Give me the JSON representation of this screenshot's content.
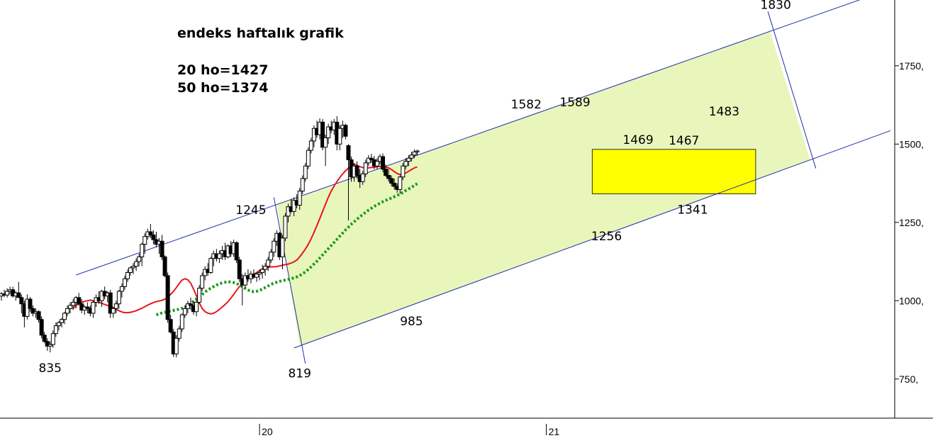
{
  "chart_data": {
    "type": "candlestick",
    "title": "endeks haftalık grafik",
    "notes": [
      "20 ho=1427",
      "50 ho=1374"
    ],
    "y_axis": {
      "ticks": [
        "750,",
        "1000,",
        "1250,",
        "1500,",
        "1750,"
      ],
      "tick_values": [
        750,
        1000,
        1250,
        1500,
        1750
      ],
      "position": "right",
      "range": [
        625,
        1960
      ]
    },
    "x_axis": {
      "ticks": [
        "20",
        "21"
      ],
      "tick_index": [
        90,
        190
      ],
      "range_index": [
        0,
        310
      ]
    },
    "grid": false,
    "candles": [
      [
        1015,
        1028,
        1000,
        1022
      ],
      [
        1022,
        1035,
        1012,
        1018
      ],
      [
        1018,
        1040,
        1010,
        1030
      ],
      [
        1030,
        1045,
        1020,
        1035
      ],
      [
        1035,
        1045,
        1010,
        1015
      ],
      [
        1015,
        1030,
        1000,
        1025
      ],
      [
        1025,
        1060,
        1015,
        1010
      ],
      [
        1010,
        1020,
        960,
        990
      ],
      [
        990,
        1000,
        915,
        950
      ],
      [
        950,
        1020,
        940,
        1005
      ],
      [
        1005,
        1012,
        965,
        975
      ],
      [
        975,
        985,
        950,
        960
      ],
      [
        960,
        975,
        945,
        965
      ],
      [
        965,
        970,
        930,
        940
      ],
      [
        940,
        950,
        880,
        890
      ],
      [
        890,
        900,
        865,
        870
      ],
      [
        870,
        880,
        840,
        855
      ],
      [
        855,
        870,
        835,
        860
      ],
      [
        860,
        905,
        850,
        895
      ],
      [
        895,
        930,
        885,
        920
      ],
      [
        920,
        935,
        905,
        930
      ],
      [
        930,
        945,
        915,
        940
      ],
      [
        940,
        965,
        925,
        960
      ],
      [
        960,
        985,
        950,
        975
      ],
      [
        975,
        995,
        960,
        985
      ],
      [
        985,
        1005,
        970,
        995
      ],
      [
        995,
        1015,
        975,
        1010
      ],
      [
        1010,
        1025,
        985,
        990
      ],
      [
        990,
        1005,
        960,
        970
      ],
      [
        970,
        985,
        955,
        980
      ],
      [
        980,
        995,
        960,
        975
      ],
      [
        975,
        985,
        950,
        960
      ],
      [
        960,
        1000,
        945,
        995
      ],
      [
        995,
        1020,
        980,
        1010
      ],
      [
        1010,
        1030,
        990,
        1000
      ],
      [
        1000,
        1035,
        980,
        1030
      ],
      [
        1030,
        1045,
        1005,
        1015
      ],
      [
        1015,
        1030,
        995,
        1025
      ],
      [
        1025,
        1035,
        945,
        960
      ],
      [
        960,
        980,
        945,
        975
      ],
      [
        975,
        1000,
        960,
        990
      ],
      [
        990,
        1035,
        975,
        1030
      ],
      [
        1030,
        1055,
        1010,
        1045
      ],
      [
        1045,
        1080,
        1035,
        1070
      ],
      [
        1070,
        1100,
        1060,
        1090
      ],
      [
        1090,
        1110,
        1080,
        1105
      ],
      [
        1105,
        1120,
        1085,
        1110
      ],
      [
        1110,
        1135,
        1095,
        1125
      ],
      [
        1125,
        1150,
        1110,
        1140
      ],
      [
        1140,
        1185,
        1110,
        1180
      ],
      [
        1180,
        1215,
        1150,
        1205
      ],
      [
        1205,
        1230,
        1195,
        1220
      ],
      [
        1220,
        1245,
        1200,
        1210
      ],
      [
        1210,
        1225,
        1180,
        1195
      ],
      [
        1195,
        1220,
        1170,
        1180
      ],
      [
        1180,
        1200,
        1150,
        1190
      ],
      [
        1190,
        1210,
        1130,
        1140
      ],
      [
        1140,
        1145,
        1075,
        1080
      ],
      [
        1080,
        1090,
        930,
        940
      ],
      [
        940,
        955,
        895,
        900
      ],
      [
        900,
        910,
        820,
        830
      ],
      [
        830,
        890,
        819,
        880
      ],
      [
        880,
        920,
        870,
        910
      ],
      [
        910,
        960,
        900,
        955
      ],
      [
        955,
        985,
        945,
        975
      ],
      [
        975,
        1000,
        960,
        990
      ],
      [
        990,
        1010,
        970,
        985
      ],
      [
        985,
        1000,
        955,
        965
      ],
      [
        965,
        1005,
        950,
        995
      ],
      [
        995,
        1050,
        990,
        1040
      ],
      [
        1040,
        1090,
        1030,
        1080
      ],
      [
        1080,
        1110,
        1065,
        1100
      ],
      [
        1100,
        1120,
        1080,
        1090
      ],
      [
        1090,
        1140,
        1085,
        1135
      ],
      [
        1135,
        1160,
        1110,
        1150
      ],
      [
        1150,
        1165,
        1125,
        1135
      ],
      [
        1135,
        1160,
        1120,
        1150
      ],
      [
        1150,
        1175,
        1130,
        1160
      ],
      [
        1160,
        1185,
        1130,
        1140
      ],
      [
        1140,
        1180,
        1135,
        1175
      ],
      [
        1175,
        1190,
        1140,
        1150
      ],
      [
        1150,
        1195,
        1140,
        1185
      ],
      [
        1185,
        1190,
        1120,
        1130
      ],
      [
        1130,
        1140,
        1060,
        1070
      ],
      [
        1070,
        1085,
        985,
        1050
      ],
      [
        1050,
        1090,
        1040,
        1080
      ],
      [
        1080,
        1100,
        1060,
        1070
      ],
      [
        1070,
        1095,
        1055,
        1085
      ],
      [
        1085,
        1100,
        1070,
        1075
      ],
      [
        1075,
        1090,
        1060,
        1085
      ],
      [
        1085,
        1100,
        1065,
        1090
      ],
      [
        1090,
        1115,
        1070,
        1100
      ],
      [
        1100,
        1120,
        1080,
        1110
      ],
      [
        1110,
        1140,
        1095,
        1130
      ],
      [
        1130,
        1165,
        1120,
        1155
      ],
      [
        1155,
        1200,
        1140,
        1190
      ],
      [
        1190,
        1225,
        1175,
        1215
      ],
      [
        1215,
        1220,
        1130,
        1140
      ],
      [
        1140,
        1210,
        1100,
        1200
      ],
      [
        1200,
        1280,
        1190,
        1270
      ],
      [
        1270,
        1310,
        1250,
        1300
      ],
      [
        1300,
        1325,
        1280,
        1285
      ],
      [
        1285,
        1330,
        1270,
        1320
      ],
      [
        1320,
        1340,
        1295,
        1305
      ],
      [
        1305,
        1360,
        1290,
        1350
      ],
      [
        1350,
        1400,
        1340,
        1390
      ],
      [
        1390,
        1440,
        1380,
        1430
      ],
      [
        1430,
        1490,
        1420,
        1480
      ],
      [
        1480,
        1520,
        1470,
        1510
      ],
      [
        1510,
        1560,
        1490,
        1550
      ],
      [
        1550,
        1575,
        1520,
        1530
      ],
      [
        1530,
        1582,
        1515,
        1570
      ],
      [
        1570,
        1580,
        1480,
        1490
      ],
      [
        1490,
        1530,
        1430,
        1520
      ],
      [
        1520,
        1565,
        1500,
        1555
      ],
      [
        1555,
        1575,
        1535,
        1545
      ],
      [
        1545,
        1580,
        1530,
        1570
      ],
      [
        1570,
        1589,
        1480,
        1500
      ],
      [
        1500,
        1560,
        1480,
        1550
      ],
      [
        1550,
        1575,
        1520,
        1560
      ],
      [
        1560,
        1565,
        1515,
        1525
      ],
      [
        1495,
        1500,
        1256,
        1450
      ],
      [
        1450,
        1460,
        1380,
        1395
      ],
      [
        1395,
        1440,
        1380,
        1430
      ],
      [
        1430,
        1445,
        1390,
        1400
      ],
      [
        1400,
        1420,
        1360,
        1380
      ],
      [
        1380,
        1415,
        1370,
        1405
      ],
      [
        1405,
        1450,
        1395,
        1440
      ],
      [
        1440,
        1465,
        1430,
        1455
      ],
      [
        1455,
        1469,
        1440,
        1450
      ],
      [
        1450,
        1462,
        1420,
        1430
      ],
      [
        1430,
        1455,
        1420,
        1445
      ],
      [
        1445,
        1468,
        1435,
        1460
      ],
      [
        1460,
        1470,
        1410,
        1420
      ],
      [
        1420,
        1435,
        1395,
        1400
      ],
      [
        1400,
        1420,
        1380,
        1390
      ],
      [
        1390,
        1400,
        1365,
        1375
      ],
      [
        1375,
        1390,
        1355,
        1365
      ],
      [
        1365,
        1375,
        1345,
        1355
      ],
      [
        1355,
        1400,
        1341,
        1395
      ],
      [
        1395,
        1440,
        1385,
        1430
      ],
      [
        1430,
        1455,
        1420,
        1445
      ],
      [
        1445,
        1465,
        1430,
        1455
      ],
      [
        1455,
        1475,
        1445,
        1465
      ],
      [
        1465,
        1483,
        1455,
        1475
      ],
      [
        1475,
        1482,
        1465,
        1478
      ]
    ],
    "series": [
      {
        "name": "20 ho",
        "color": "#e8161c",
        "style": "solid",
        "values": [
          975,
          985,
          990,
          995,
          998,
          1000,
          1002,
          1000,
          998,
          995,
          992,
          988,
          985,
          982,
          978,
          972,
          968,
          964,
          962,
          962,
          963,
          965,
          968,
          972,
          976,
          981,
          986,
          990,
          994,
          997,
          999,
          1001,
          1005,
          1012,
          1020,
          1030,
          1042,
          1055,
          1066,
          1070,
          1067,
          1056,
          1037,
          1015,
          993,
          975,
          965,
          960,
          958,
          960,
          965,
          972,
          980,
          988,
          997,
          1008,
          1020,
          1033,
          1045,
          1054,
          1062,
          1070,
          1077,
          1084,
          1090,
          1096,
          1101,
          1105,
          1107,
          1108,
          1108,
          1109,
          1111,
          1113,
          1115,
          1117,
          1120,
          1124,
          1130,
          1140,
          1152,
          1165,
          1180,
          1198,
          1218,
          1240,
          1262,
          1285,
          1308,
          1330,
          1350,
          1366,
          1380,
          1393,
          1405,
          1415,
          1423,
          1432,
          1436,
          1432,
          1428,
          1425,
          1424,
          1424,
          1425,
          1426,
          1428,
          1429,
          1429,
          1427,
          1424,
          1419,
          1412,
          1406,
          1403,
          1404,
          1408,
          1413,
          1419,
          1424,
          1427
        ]
      },
      {
        "name": "50 ho",
        "color": "#1d9a1d",
        "style": "dotted",
        "values": [
          955,
          958,
          961,
          963,
          965,
          967,
          969,
          971,
          973,
          976,
          980,
          985,
          991,
          998,
          1005,
          1013,
          1020,
          1028,
          1034,
          1040,
          1045,
          1050,
          1054,
          1057,
          1059,
          1060,
          1060,
          1058,
          1055,
          1050,
          1045,
          1039,
          1034,
          1030,
          1029,
          1030,
          1033,
          1037,
          1042,
          1047,
          1052,
          1056,
          1059,
          1062,
          1064,
          1066,
          1068,
          1070,
          1073,
          1076,
          1080,
          1086,
          1092,
          1100,
          1108,
          1117,
          1126,
          1136,
          1146,
          1156,
          1166,
          1176,
          1186,
          1196,
          1206,
          1216,
          1226,
          1235,
          1244,
          1252,
          1260,
          1268,
          1275,
          1282,
          1289,
          1295,
          1301,
          1306,
          1311,
          1316,
          1320,
          1324,
          1328,
          1332,
          1336,
          1341,
          1346,
          1352,
          1357,
          1362,
          1368,
          1374
        ]
      }
    ],
    "channel": {
      "upper": {
        "from": [
          26,
          1082
        ],
        "to": [
          310,
          1995
        ]
      },
      "lower": {
        "from": [
          102,
          849
        ],
        "to": [
          310,
          1543
        ]
      }
    },
    "box": {
      "from_index": [
        206,
        263
      ],
      "y_range": [
        1341,
        1483
      ]
    },
    "annotations": [
      {
        "text": "835",
        "x": 17,
        "y": 835,
        "pos": "below"
      },
      {
        "text": "1245",
        "x": 87,
        "y": 1245,
        "pos": "above"
      },
      {
        "text": "819",
        "x": 104,
        "y": 819,
        "pos": "below"
      },
      {
        "text": "985",
        "x": 143,
        "y": 985,
        "pos": "below"
      },
      {
        "text": "1582",
        "x": 183,
        "y": 1582,
        "pos": "above"
      },
      {
        "text": "1589",
        "x": 200,
        "y": 1589,
        "pos": "above"
      },
      {
        "text": "1256",
        "x": 211,
        "y": 1256,
        "pos": "below"
      },
      {
        "text": "1469",
        "x": 222,
        "y": 1469,
        "pos": "above"
      },
      {
        "text": "1467",
        "x": 238,
        "y": 1467,
        "pos": "above"
      },
      {
        "text": "1341",
        "x": 241,
        "y": 1341,
        "pos": "below"
      },
      {
        "text": "1483",
        "x": 252,
        "y": 1560,
        "pos": "above"
      },
      {
        "text": "1830",
        "x": 270,
        "y": 1900,
        "pos": "above"
      }
    ],
    "colors": {
      "channel_fill": "#e8f6bc",
      "box_fill": "#ffff00",
      "up_candle": "#ffffff",
      "down_candle": "#000000",
      "trendline": "#1f2fa8"
    }
  }
}
